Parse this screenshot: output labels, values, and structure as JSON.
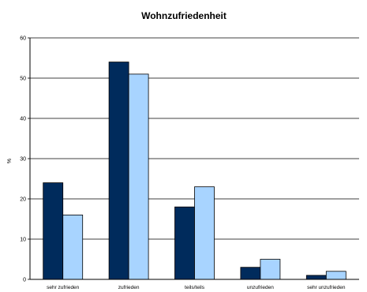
{
  "chart_data": {
    "type": "bar",
    "title": "Wohnzufriedenheit",
    "ylabel": "%",
    "xlabel": "",
    "ylim": [
      0,
      60
    ],
    "yticks": [
      0,
      10,
      20,
      30,
      40,
      50,
      60
    ],
    "grid": true,
    "legend": "none",
    "categories": [
      "sehr zufrieden",
      "zufrieden",
      "teils/teils",
      "unzufrieden",
      "sehr unzufrieden"
    ],
    "series": [
      {
        "color": "#002b5c",
        "values": [
          24,
          54,
          18,
          3,
          1
        ]
      },
      {
        "color": "#a8d4ff",
        "values": [
          16,
          51,
          23,
          5,
          2
        ]
      }
    ]
  }
}
